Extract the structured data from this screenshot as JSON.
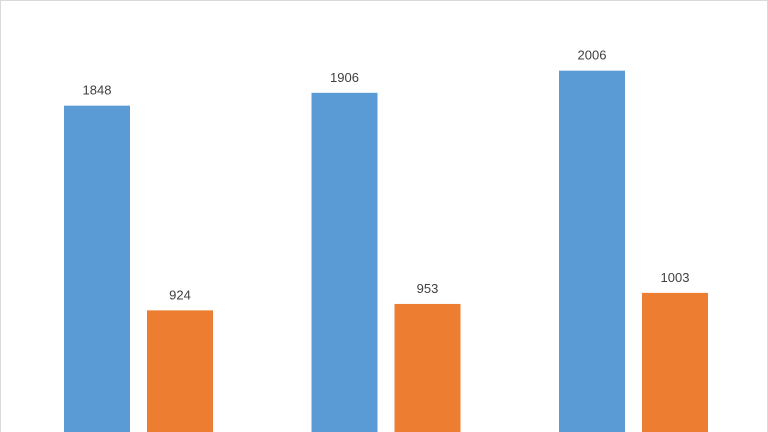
{
  "chart_data": {
    "type": "bar",
    "categories": [
      null,
      null,
      null
    ],
    "series": [
      {
        "color": "#5b9bd5",
        "values": [
          1848,
          1906,
          2006
        ]
      },
      {
        "color": "#ed7d31",
        "values": [
          924,
          953,
          1003
        ]
      }
    ],
    "ylim": [
      375,
      2325
    ]
  }
}
